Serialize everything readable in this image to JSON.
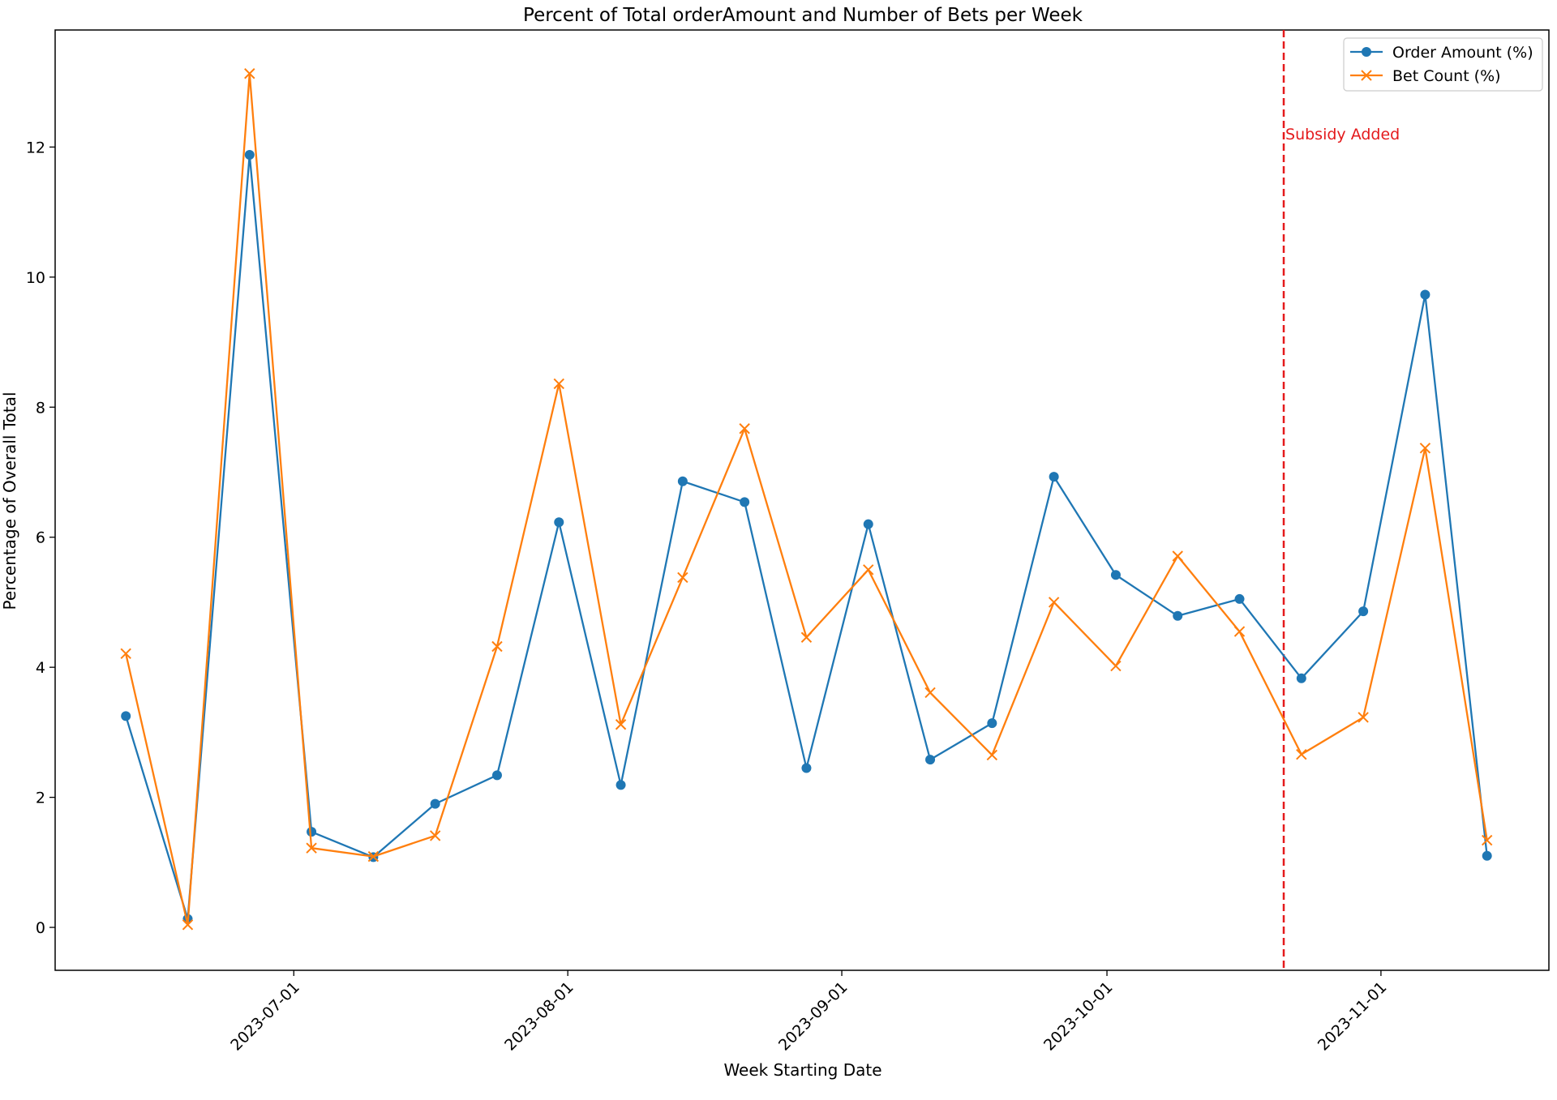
{
  "chart_data": {
    "type": "line",
    "title": "Percent of Total orderAmount and Number of Bets per Week",
    "xlabel": "Week Starting Date",
    "ylabel": "Percentage of Overall Total",
    "x": [
      "2023-06-12",
      "2023-06-19",
      "2023-06-26",
      "2023-07-03",
      "2023-07-10",
      "2023-07-17",
      "2023-07-24",
      "2023-07-31",
      "2023-08-07",
      "2023-08-14",
      "2023-08-21",
      "2023-08-28",
      "2023-09-04",
      "2023-09-11",
      "2023-09-18",
      "2023-09-25",
      "2023-10-02",
      "2023-10-09",
      "2023-10-16",
      "2023-10-23",
      "2023-10-30",
      "2023-11-06",
      "2023-11-13"
    ],
    "series": [
      {
        "name": "Order Amount (%)",
        "color": "#1f77b4",
        "marker": "circle",
        "values": [
          3.25,
          0.13,
          11.88,
          1.47,
          1.08,
          1.9,
          2.34,
          6.23,
          2.19,
          6.86,
          6.54,
          2.45,
          6.2,
          2.58,
          3.14,
          6.93,
          5.42,
          4.79,
          5.05,
          3.83,
          4.86,
          9.73,
          1.1
        ]
      },
      {
        "name": "Bet Count (%)",
        "color": "#ff7f0e",
        "marker": "x",
        "values": [
          4.21,
          0.04,
          13.13,
          1.22,
          1.09,
          1.41,
          4.32,
          8.36,
          3.12,
          5.38,
          7.67,
          4.46,
          5.5,
          3.61,
          2.65,
          5.0,
          4.02,
          5.71,
          4.55,
          2.66,
          3.23,
          7.37,
          1.34
        ]
      }
    ],
    "xticks": [
      "2023-07-01",
      "2023-08-01",
      "2023-09-01",
      "2023-10-01",
      "2023-11-01"
    ],
    "yticks": [
      0,
      2,
      4,
      6,
      8,
      10,
      12
    ],
    "xlim": [
      "2023-06-04",
      "2023-11-20"
    ],
    "ylim": [
      -0.66,
      13.8
    ],
    "grid": false,
    "legend_position": "top-right",
    "annotations": [
      {
        "type": "vertical-line",
        "x": "2023-10-21",
        "color": "#e41a1c",
        "style": "dashed",
        "label": "Subsidy Added"
      }
    ]
  }
}
